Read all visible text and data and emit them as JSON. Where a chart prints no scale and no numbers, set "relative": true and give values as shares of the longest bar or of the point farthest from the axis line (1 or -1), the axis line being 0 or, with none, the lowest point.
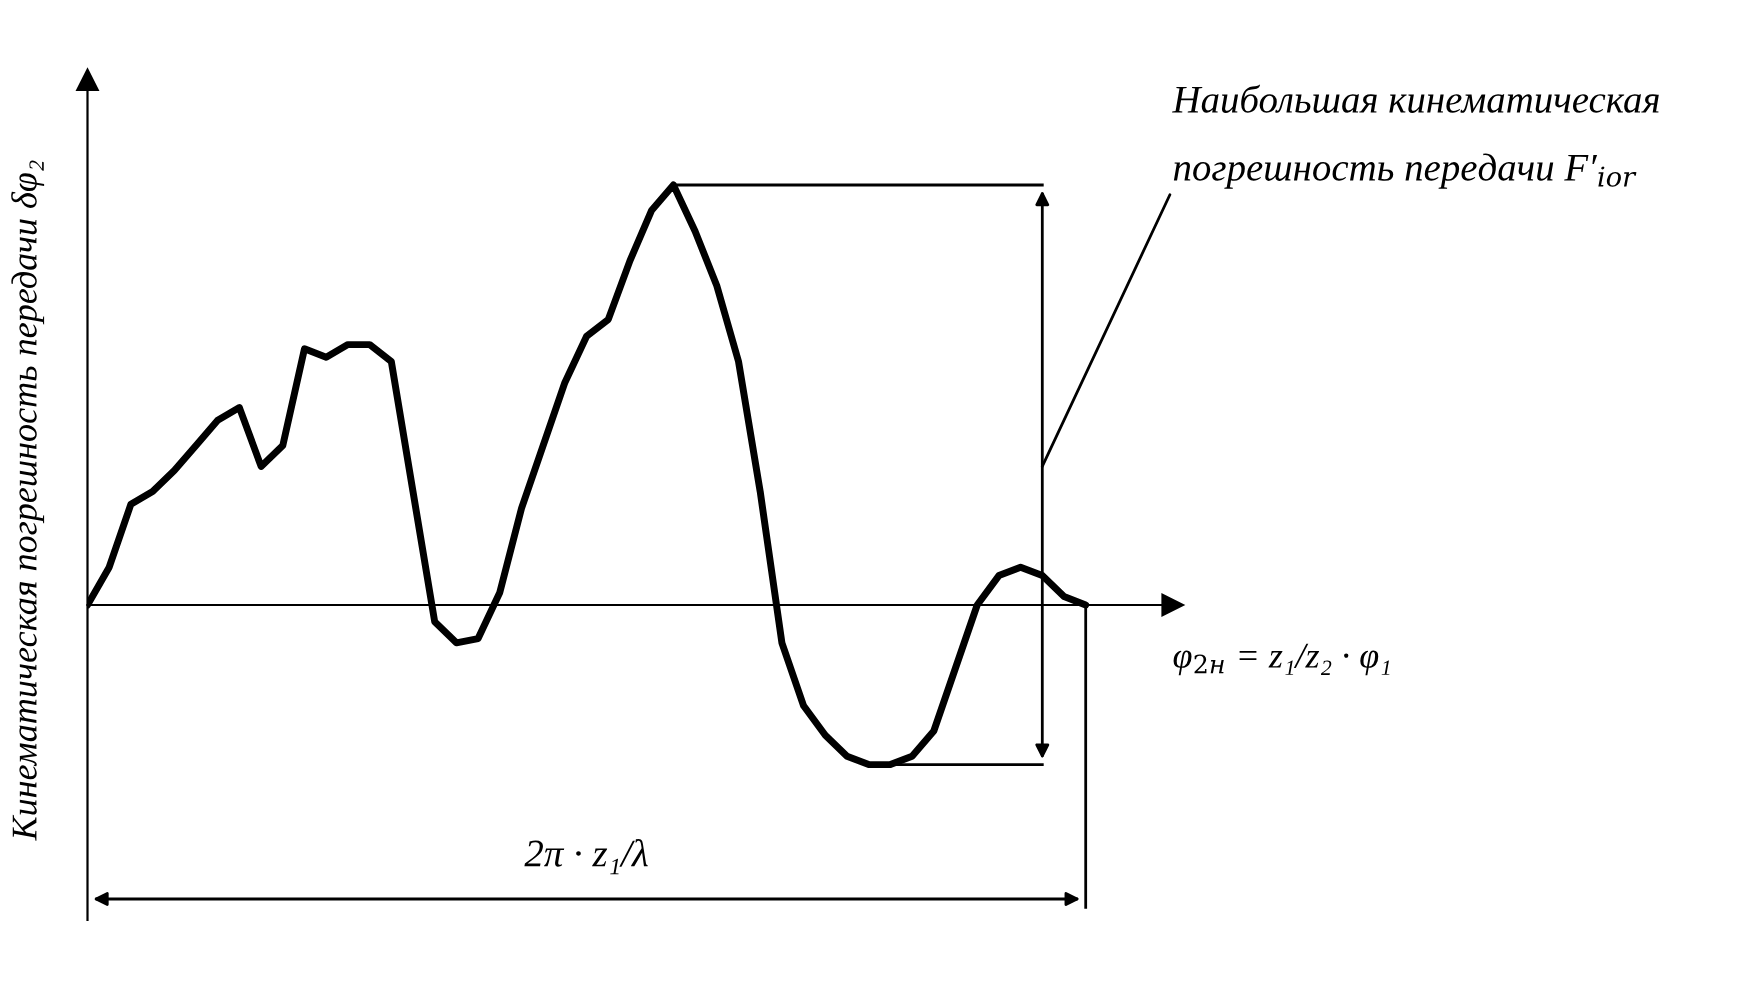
{
  "chart_data": {
    "type": "line",
    "relative": true,
    "ylabel": "Кинематическая погрешность передачи δφ₂",
    "xlabel": "φ$_{2н}$ = z₁/z₂ · φ₁",
    "annotations": [
      "Наибольшая кинематическая\nпогрешность передачи F′$_{ior}$",
      "2π · z₁/λ"
    ],
    "categories": [
      null,
      null,
      null,
      null,
      null,
      null,
      null,
      null,
      null,
      null,
      null,
      null,
      null,
      null,
      null,
      null,
      null,
      null,
      null,
      null,
      null,
      null,
      null,
      null,
      null,
      null,
      null,
      null,
      null,
      null,
      null,
      null,
      null,
      null,
      null,
      null,
      null,
      null,
      null,
      null,
      null,
      null,
      null,
      null,
      null,
      null,
      null
    ],
    "series": [
      {
        "color": "#000000",
        "values": [
          0,
          0.09,
          0.24,
          0.27,
          0.32,
          0.38,
          0.44,
          0.47,
          0.33,
          0.38,
          0.61,
          0.59,
          0.62,
          0.62,
          0.58,
          0.27,
          -0.04,
          -0.09,
          -0.08,
          0.03,
          0.23,
          0.38,
          0.53,
          0.64,
          0.68,
          0.82,
          0.94,
          1,
          0.89,
          0.76,
          0.58,
          0.27,
          -0.09,
          -0.24,
          -0.31,
          -0.36,
          -0.38,
          -0.38,
          -0.36,
          -0.3,
          -0.15,
          0,
          0.07,
          0.09,
          0.07,
          0.02,
          0
        ]
      }
    ],
    "grid": false,
    "marker": "none",
    "line_style": "solid"
  }
}
